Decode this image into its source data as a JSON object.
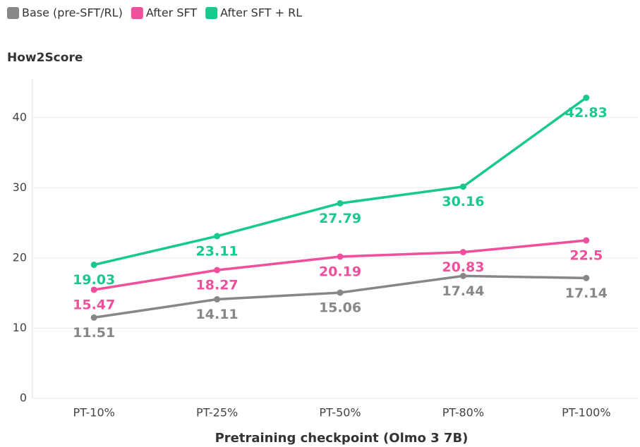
{
  "chart_data": {
    "type": "line",
    "y_label": "How2Score",
    "x_label": "Pretraining checkpoint (Olmo 3 7B)",
    "categories": [
      "PT-10%",
      "PT-25%",
      "PT-50%",
      "PT-80%",
      "PT-100%"
    ],
    "series": [
      {
        "name": "Base (pre-SFT/RL)",
        "color": "#878787",
        "values": [
          11.51,
          14.11,
          15.06,
          17.44,
          17.14
        ]
      },
      {
        "name": "After SFT",
        "color": "#ef4f9b",
        "values": [
          15.47,
          18.27,
          20.19,
          20.83,
          22.5
        ]
      },
      {
        "name": "After SFT + RL",
        "color": "#17c98a",
        "values": [
          19.03,
          23.11,
          27.79,
          30.16,
          42.83
        ]
      }
    ],
    "ylim": [
      0,
      45
    ],
    "yticks": [
      0,
      10,
      20,
      30,
      40
    ],
    "grid": true,
    "legend": "top-left"
  }
}
